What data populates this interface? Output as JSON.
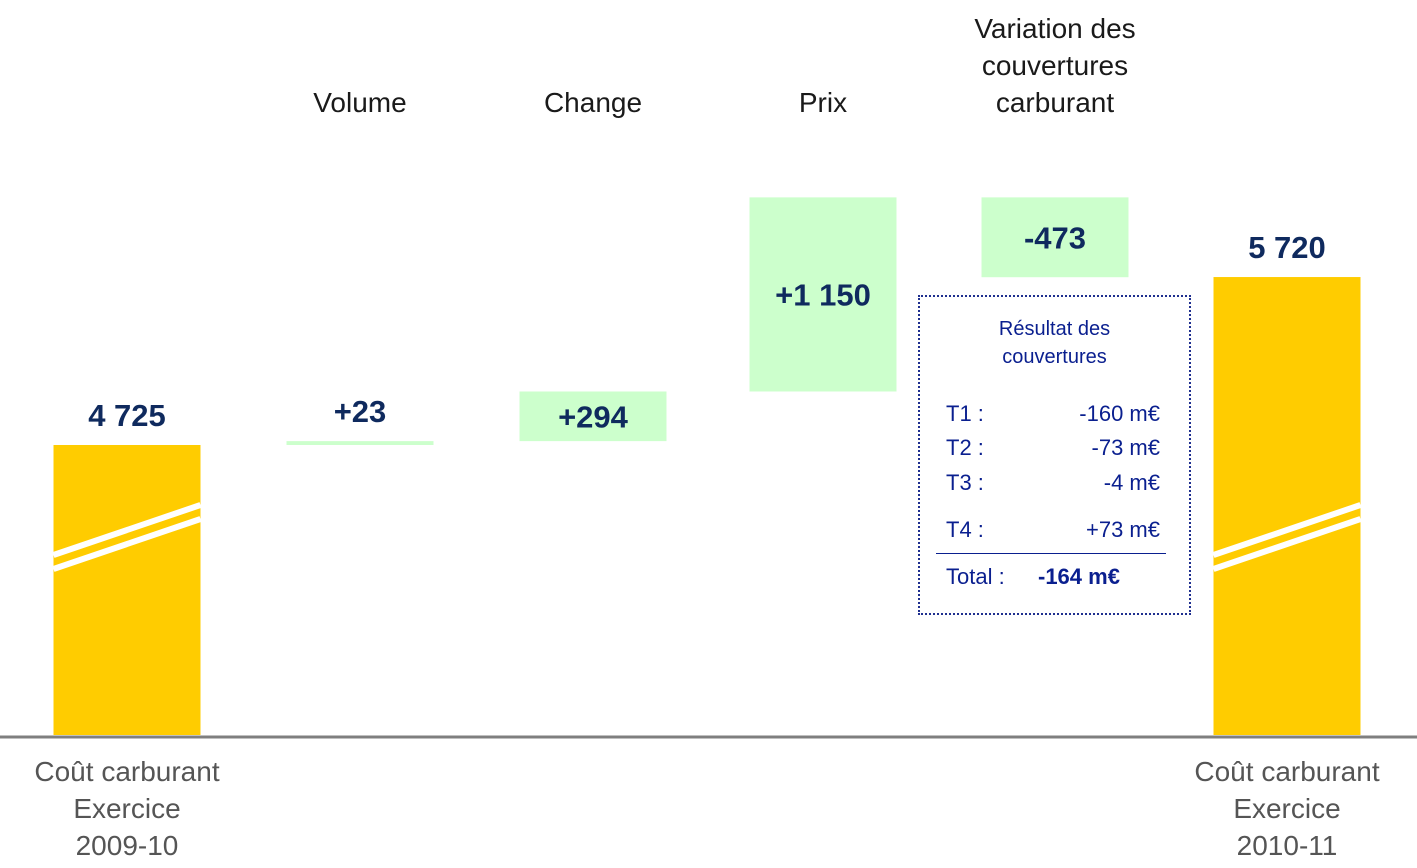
{
  "chart_data": {
    "type": "waterfall",
    "categories": [
      "Coût carburant\nExercice\n2009-10",
      "Volume",
      "Change",
      "Prix",
      "Variation des\ncouvertures\ncarburant",
      "Coût carburant\nExercice\n2010-11"
    ],
    "values": [
      4725,
      23,
      294,
      1150,
      -473,
      5720
    ],
    "value_labels": [
      "4 725",
      "+23",
      "+294",
      "+1 150",
      "-473",
      "5 720"
    ],
    "total_color": "#ffcc00",
    "change_color": "#ccffcc"
  },
  "hedging_box": {
    "title": "Résultat des\ncouvertures",
    "rows": [
      [
        "T1 :",
        "-160 m€"
      ],
      [
        "T2 :",
        "-73 m€"
      ],
      [
        "T3 :",
        "-4 m€"
      ],
      [
        "T4 :",
        "+73 m€"
      ]
    ],
    "total": [
      "Total :",
      "-164 m€"
    ]
  }
}
